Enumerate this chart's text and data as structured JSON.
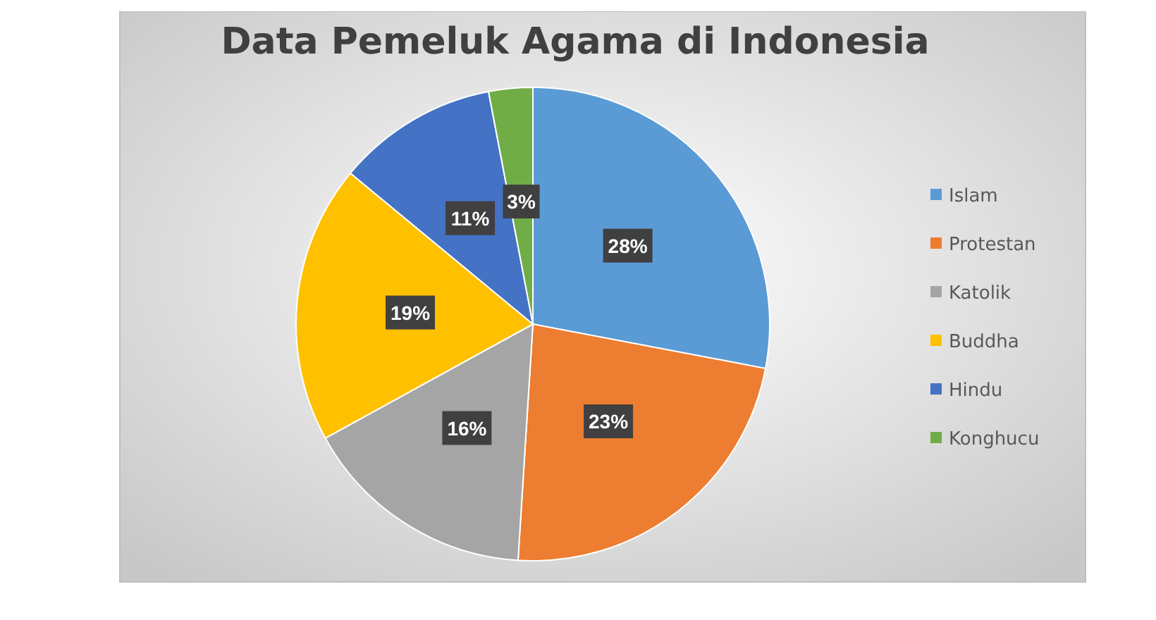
{
  "chart_data": {
    "type": "pie",
    "title": "Data Pemeluk Agama di Indonesia",
    "categories": [
      "Islam",
      "Protestan",
      "Katolik",
      "Buddha",
      "Hindu",
      "Konghucu"
    ],
    "values": [
      28,
      23,
      16,
      19,
      11,
      3
    ],
    "colors": [
      "#5b9bd5",
      "#ed7d31",
      "#a5a5a5",
      "#ffc000",
      "#4472c4",
      "#70ad47"
    ],
    "value_labels": [
      "28%",
      "23%",
      "16%",
      "19%",
      "11%",
      "3%"
    ],
    "legend": "right"
  }
}
